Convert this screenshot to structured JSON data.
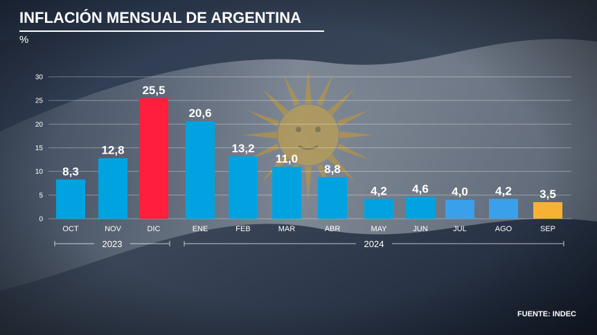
{
  "header": {
    "title": "INFLACIÓN MENSUAL DE ARGENTINA",
    "unit": "%"
  },
  "footer": {
    "source": "FUENTE: INDEC"
  },
  "colors": {
    "default": "#00a3e0",
    "highlight_max": "#ff1f3d",
    "recent": "#3aa0ec",
    "latest": "#f7b234"
  },
  "background": {
    "description": "argentina-flag"
  },
  "chart_data": {
    "type": "bar",
    "categories": [
      "OCT",
      "NOV",
      "DIC",
      "ENE",
      "FEB",
      "MAR",
      "ABR",
      "MAY",
      "JUN",
      "JUL",
      "AGO",
      "SEP"
    ],
    "values": [
      8.3,
      12.8,
      25.5,
      20.6,
      13.2,
      11.0,
      8.8,
      4.2,
      4.6,
      4.0,
      4.2,
      3.5
    ],
    "value_labels": [
      "8,3",
      "12,8",
      "25,5",
      "20,6",
      "13,2",
      "11,0",
      "8,8",
      "4,2",
      "4,6",
      "4,0",
      "4,2",
      "3,5"
    ],
    "bar_colors": [
      "#00a3e0",
      "#00a3e0",
      "#ff1f3d",
      "#00a3e0",
      "#00a3e0",
      "#00a3e0",
      "#00a3e0",
      "#00a3e0",
      "#00a3e0",
      "#3aa0ec",
      "#3aa0ec",
      "#f7b234"
    ],
    "year_groups": [
      {
        "label": "2023",
        "from": 0,
        "to": 2
      },
      {
        "label": "2024",
        "from": 3,
        "to": 11
      }
    ],
    "yticks": [
      0,
      5,
      10,
      15,
      20,
      25,
      30
    ],
    "ylim": [
      0,
      30
    ],
    "grid": true,
    "title": "INFLACIÓN MENSUAL DE ARGENTINA",
    "ylabel": "%",
    "xlabel": ""
  }
}
